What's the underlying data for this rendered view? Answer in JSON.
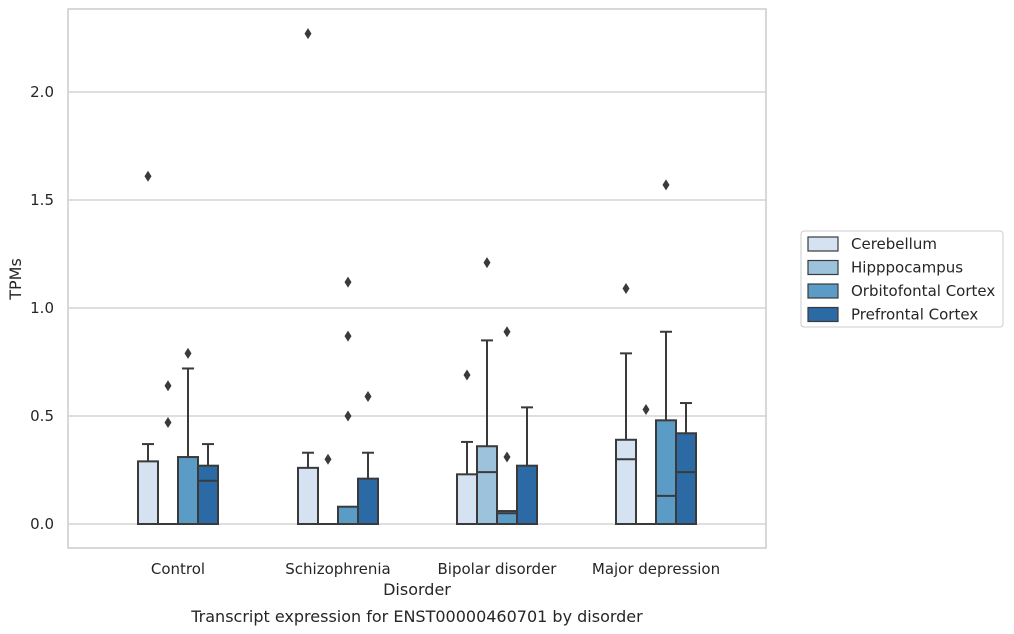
{
  "chart_data": {
    "type": "box",
    "caption": "Transcript expression for ENST00000460701 by disorder",
    "xlabel": "Disorder",
    "ylabel": "TPMs",
    "ylim": [
      -0.11,
      2.38
    ],
    "yticks": [
      0.0,
      0.5,
      1.0,
      1.5,
      2.0
    ],
    "ytick_labels": [
      "0.0",
      "0.5",
      "1.0",
      "1.5",
      "2.0"
    ],
    "grid": "horizontal",
    "legend_position": "right",
    "categories": [
      "Control",
      "Schizophrenia",
      "Bipolar disorder",
      "Major depression"
    ],
    "series": [
      {
        "name": "Cerebellum",
        "color": "#d4e2f1",
        "boxes": [
          {
            "min": 0.0,
            "q1": 0.0,
            "median": 0.0,
            "q3": 0.29,
            "max": 0.37,
            "outliers": [
              1.61
            ]
          },
          {
            "min": 0.0,
            "q1": 0.0,
            "median": 0.0,
            "q3": 0.26,
            "max": 0.33,
            "outliers": [
              2.27
            ]
          },
          {
            "min": 0.0,
            "q1": 0.0,
            "median": 0.0,
            "q3": 0.23,
            "max": 0.38,
            "outliers": [
              0.69
            ]
          },
          {
            "min": 0.0,
            "q1": 0.0,
            "median": 0.3,
            "q3": 0.39,
            "max": 0.79,
            "outliers": [
              1.09
            ]
          }
        ]
      },
      {
        "name": "Hipppocampus",
        "color": "#9dc3dc",
        "boxes": [
          {
            "min": 0.0,
            "q1": 0.0,
            "median": 0.0,
            "q3": 0.0,
            "max": 0.0,
            "outliers": [
              0.47,
              0.64
            ]
          },
          {
            "min": 0.0,
            "q1": 0.0,
            "median": 0.0,
            "q3": 0.0,
            "max": 0.0,
            "outliers": [
              0.3
            ]
          },
          {
            "min": 0.0,
            "q1": 0.0,
            "median": 0.24,
            "q3": 0.36,
            "max": 0.85,
            "outliers": [
              1.21
            ]
          },
          {
            "min": 0.0,
            "q1": 0.0,
            "median": 0.0,
            "q3": 0.0,
            "max": 0.0,
            "outliers": [
              0.53
            ]
          }
        ]
      },
      {
        "name": "Orbitofontal Cortex",
        "color": "#5b9cc7",
        "boxes": [
          {
            "min": 0.0,
            "q1": 0.0,
            "median": 0.0,
            "q3": 0.31,
            "max": 0.72,
            "outliers": [
              0.79
            ]
          },
          {
            "min": 0.0,
            "q1": 0.0,
            "median": 0.0,
            "q3": 0.08,
            "max": 0.08,
            "outliers": [
              0.5,
              0.87,
              1.12
            ]
          },
          {
            "min": 0.0,
            "q1": 0.0,
            "median": 0.05,
            "q3": 0.06,
            "max": 0.06,
            "outliers": [
              0.31,
              0.89
            ]
          },
          {
            "min": 0.0,
            "q1": 0.0,
            "median": 0.13,
            "q3": 0.48,
            "max": 0.89,
            "outliers": [
              1.57
            ]
          }
        ]
      },
      {
        "name": "Prefrontal Cortex",
        "color": "#2b6aa5",
        "boxes": [
          {
            "min": 0.0,
            "q1": 0.0,
            "median": 0.2,
            "q3": 0.27,
            "max": 0.37,
            "outliers": []
          },
          {
            "min": 0.0,
            "q1": 0.0,
            "median": 0.0,
            "q3": 0.21,
            "max": 0.33,
            "outliers": [
              0.59
            ]
          },
          {
            "min": 0.0,
            "q1": 0.0,
            "median": 0.0,
            "q3": 0.27,
            "max": 0.54,
            "outliers": []
          },
          {
            "min": 0.0,
            "q1": 0.0,
            "median": 0.24,
            "q3": 0.42,
            "max": 0.56,
            "outliers": []
          }
        ]
      }
    ]
  }
}
